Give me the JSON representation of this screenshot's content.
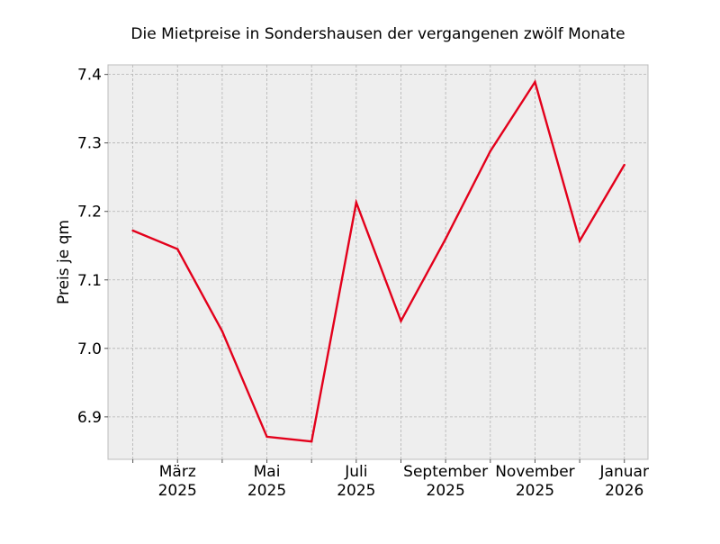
{
  "chart_data": {
    "type": "line",
    "title": "Die Mietpreise in Sondershausen der vergangenen zwölf Monate",
    "xlabel": "",
    "ylabel": "Preis je qm",
    "x": [
      "2025-02",
      "2025-03",
      "2025-04",
      "2025-05",
      "2025-06",
      "2025-07",
      "2025-08",
      "2025-09",
      "2025-10",
      "2025-11",
      "2025-12",
      "2026-01"
    ],
    "x_ticks": [
      {
        "x": "2025-03",
        "line1": "März",
        "line2": "2025"
      },
      {
        "x": "2025-05",
        "line1": "Mai",
        "line2": "2025"
      },
      {
        "x": "2025-07",
        "line1": "Juli",
        "line2": "2025"
      },
      {
        "x": "2025-09",
        "line1": "September",
        "line2": "2025"
      },
      {
        "x": "2025-11",
        "line1": "November",
        "line2": "2025"
      },
      {
        "x": "2026-01",
        "line1": "Januar",
        "line2": "2026"
      }
    ],
    "series": [
      {
        "values": [
          7.172,
          7.145,
          7.025,
          6.871,
          6.864,
          7.213,
          7.04,
          7.16,
          7.288,
          7.389,
          7.157,
          7.268
        ]
      }
    ],
    "ylim": [
      6.838,
      7.414
    ],
    "y_ticks": [
      "6.9",
      "7.0",
      "7.1",
      "7.2",
      "7.3",
      "7.4"
    ],
    "grid": true,
    "colors": {
      "line": "#e3001b",
      "plot_bg": "#eeeeee",
      "grid": "#b2b2b2",
      "frame": "#bcbcbc"
    }
  }
}
